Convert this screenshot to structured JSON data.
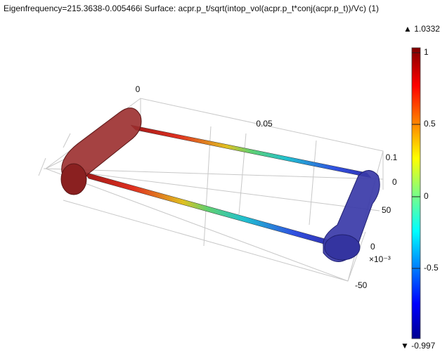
{
  "header": {
    "title": "Eigenfrequency=215.3638-0.005466i   Surface: acpr.p_t/sqrt(intop_vol(acpr.p_t*conj(acpr.p_t))/Vc) (1)"
  },
  "colorbar": {
    "max": "▲ 1.0332",
    "min": "▼ -0.997",
    "ticks": [
      "1",
      "0.5",
      "0",
      "-0.5"
    ]
  },
  "axes": {
    "x_labels": [
      "0",
      "0.05",
      "0.1"
    ],
    "y_labels": [
      "0",
      "50",
      "0",
      "-50"
    ],
    "y_multiplier": "×10⁻³"
  }
}
